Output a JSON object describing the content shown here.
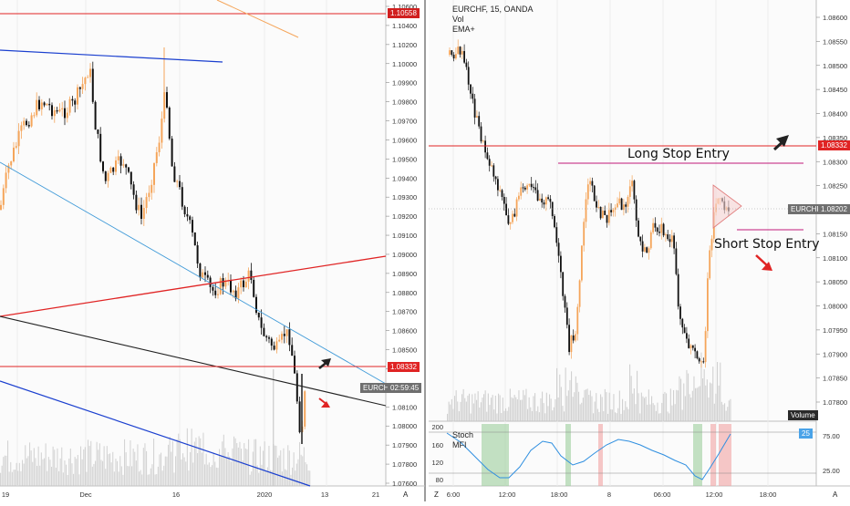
{
  "left_chart": {
    "price_ticks": [
      "1.10600",
      "1.10400",
      "1.10200",
      "1.10000",
      "1.09900",
      "1.09800",
      "1.09700",
      "1.09600",
      "1.09500",
      "1.09400",
      "1.09300",
      "1.09200",
      "1.09100",
      "1.09000",
      "1.08900",
      "1.08800",
      "1.08700",
      "1.08600",
      "1.08500",
      "1.08400",
      "1.08200",
      "1.08100",
      "1.08000",
      "1.07900",
      "1.07800",
      "1.07600"
    ],
    "time_ticks": [
      "19",
      "Dec",
      "16",
      "2020",
      "13",
      "21"
    ],
    "top_level_label": "1.10558",
    "level_label": "1.08332",
    "symbol_chip": "EURCHF",
    "countdown": "02:59:45",
    "axis_mode": "A"
  },
  "right_chart": {
    "title": "EURCHF, 15, OANDA",
    "indicator_vol": "Vol",
    "indicator_ema": "EMA+",
    "price_ticks": [
      "1.08600",
      "1.08550",
      "1.08500",
      "1.08450",
      "1.08400",
      "1.08350",
      "1.08300",
      "1.08250",
      "1.08200",
      "1.08150",
      "1.08100",
      "1.08050",
      "1.08000",
      "1.07950",
      "1.07900",
      "1.07850",
      "1.07800"
    ],
    "time_ticks": [
      "6:00",
      "12:00",
      "18:00",
      "8",
      "06:00",
      "12:00",
      "18:00"
    ],
    "level_label": "1.08332",
    "symbol_chip": "EURCHF",
    "current_price": "1.08202",
    "volume_chip": "Volume",
    "long_label": "Long Stop Entry",
    "short_label": "Short Stop Entry",
    "z_mode": "Z",
    "axis_mode": "A"
  },
  "stoch_panel": {
    "title_stoch": "Stoch",
    "title_mfi": "MFI",
    "left_ticks": [
      "200",
      "160",
      "120",
      "80"
    ],
    "right_ticks": [
      "75.00",
      "25.00"
    ],
    "chip": "25"
  },
  "colors": {
    "up_candle": "#f5a55a",
    "down_candle": "#111111",
    "level_red": "#e02424",
    "trend_blue": "#1a3fcf",
    "light_blue": "#3f9ad8",
    "magenta": "#c01a7a",
    "stoch_line": "#2f8fe0",
    "volume_gray": "#c7c7c7"
  }
}
